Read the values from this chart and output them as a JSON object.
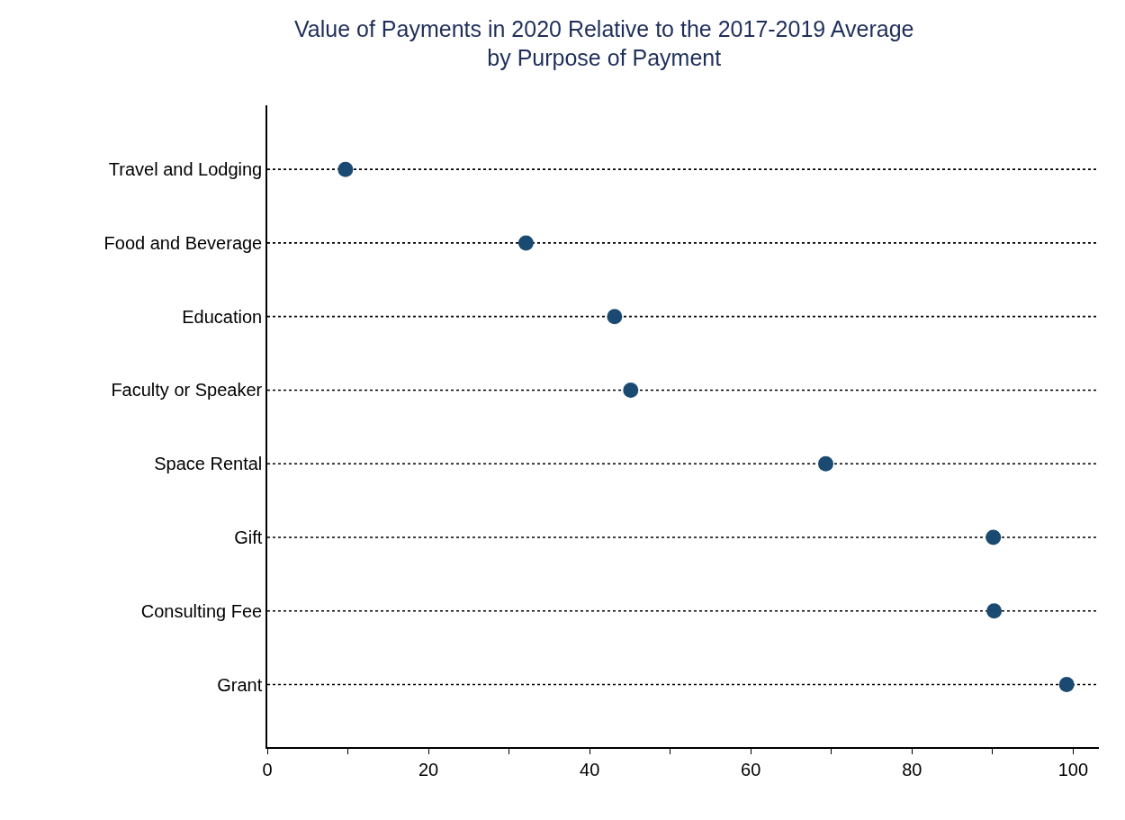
{
  "chart_data": {
    "type": "scatter",
    "orientation": "horizontal",
    "title": "Value of Payments in 2020 Relative to the 2017-2019 Average\nby Purpose of Payment",
    "categories": [
      "Travel and Lodging",
      "Food and Beverage",
      "Education",
      "Faculty or Speaker",
      "Space Rental",
      "Gift",
      "Consulting Fee",
      "Grant"
    ],
    "values": [
      9.7,
      32.1,
      43.1,
      45.1,
      69.3,
      90.1,
      90.2,
      99.2
    ],
    "color": "#1a4a72",
    "marker": "circle",
    "xlim": [
      0,
      103.2
    ],
    "xticks": [
      0,
      {
        "value": 10,
        "label": null
      },
      20,
      {
        "value": 30,
        "label": null
      },
      40,
      {
        "value": 50,
        "label": null
      },
      60,
      {
        "value": 70,
        "label": null
      },
      80,
      {
        "value": 90,
        "label": null
      },
      100
    ],
    "grid": "y"
  }
}
